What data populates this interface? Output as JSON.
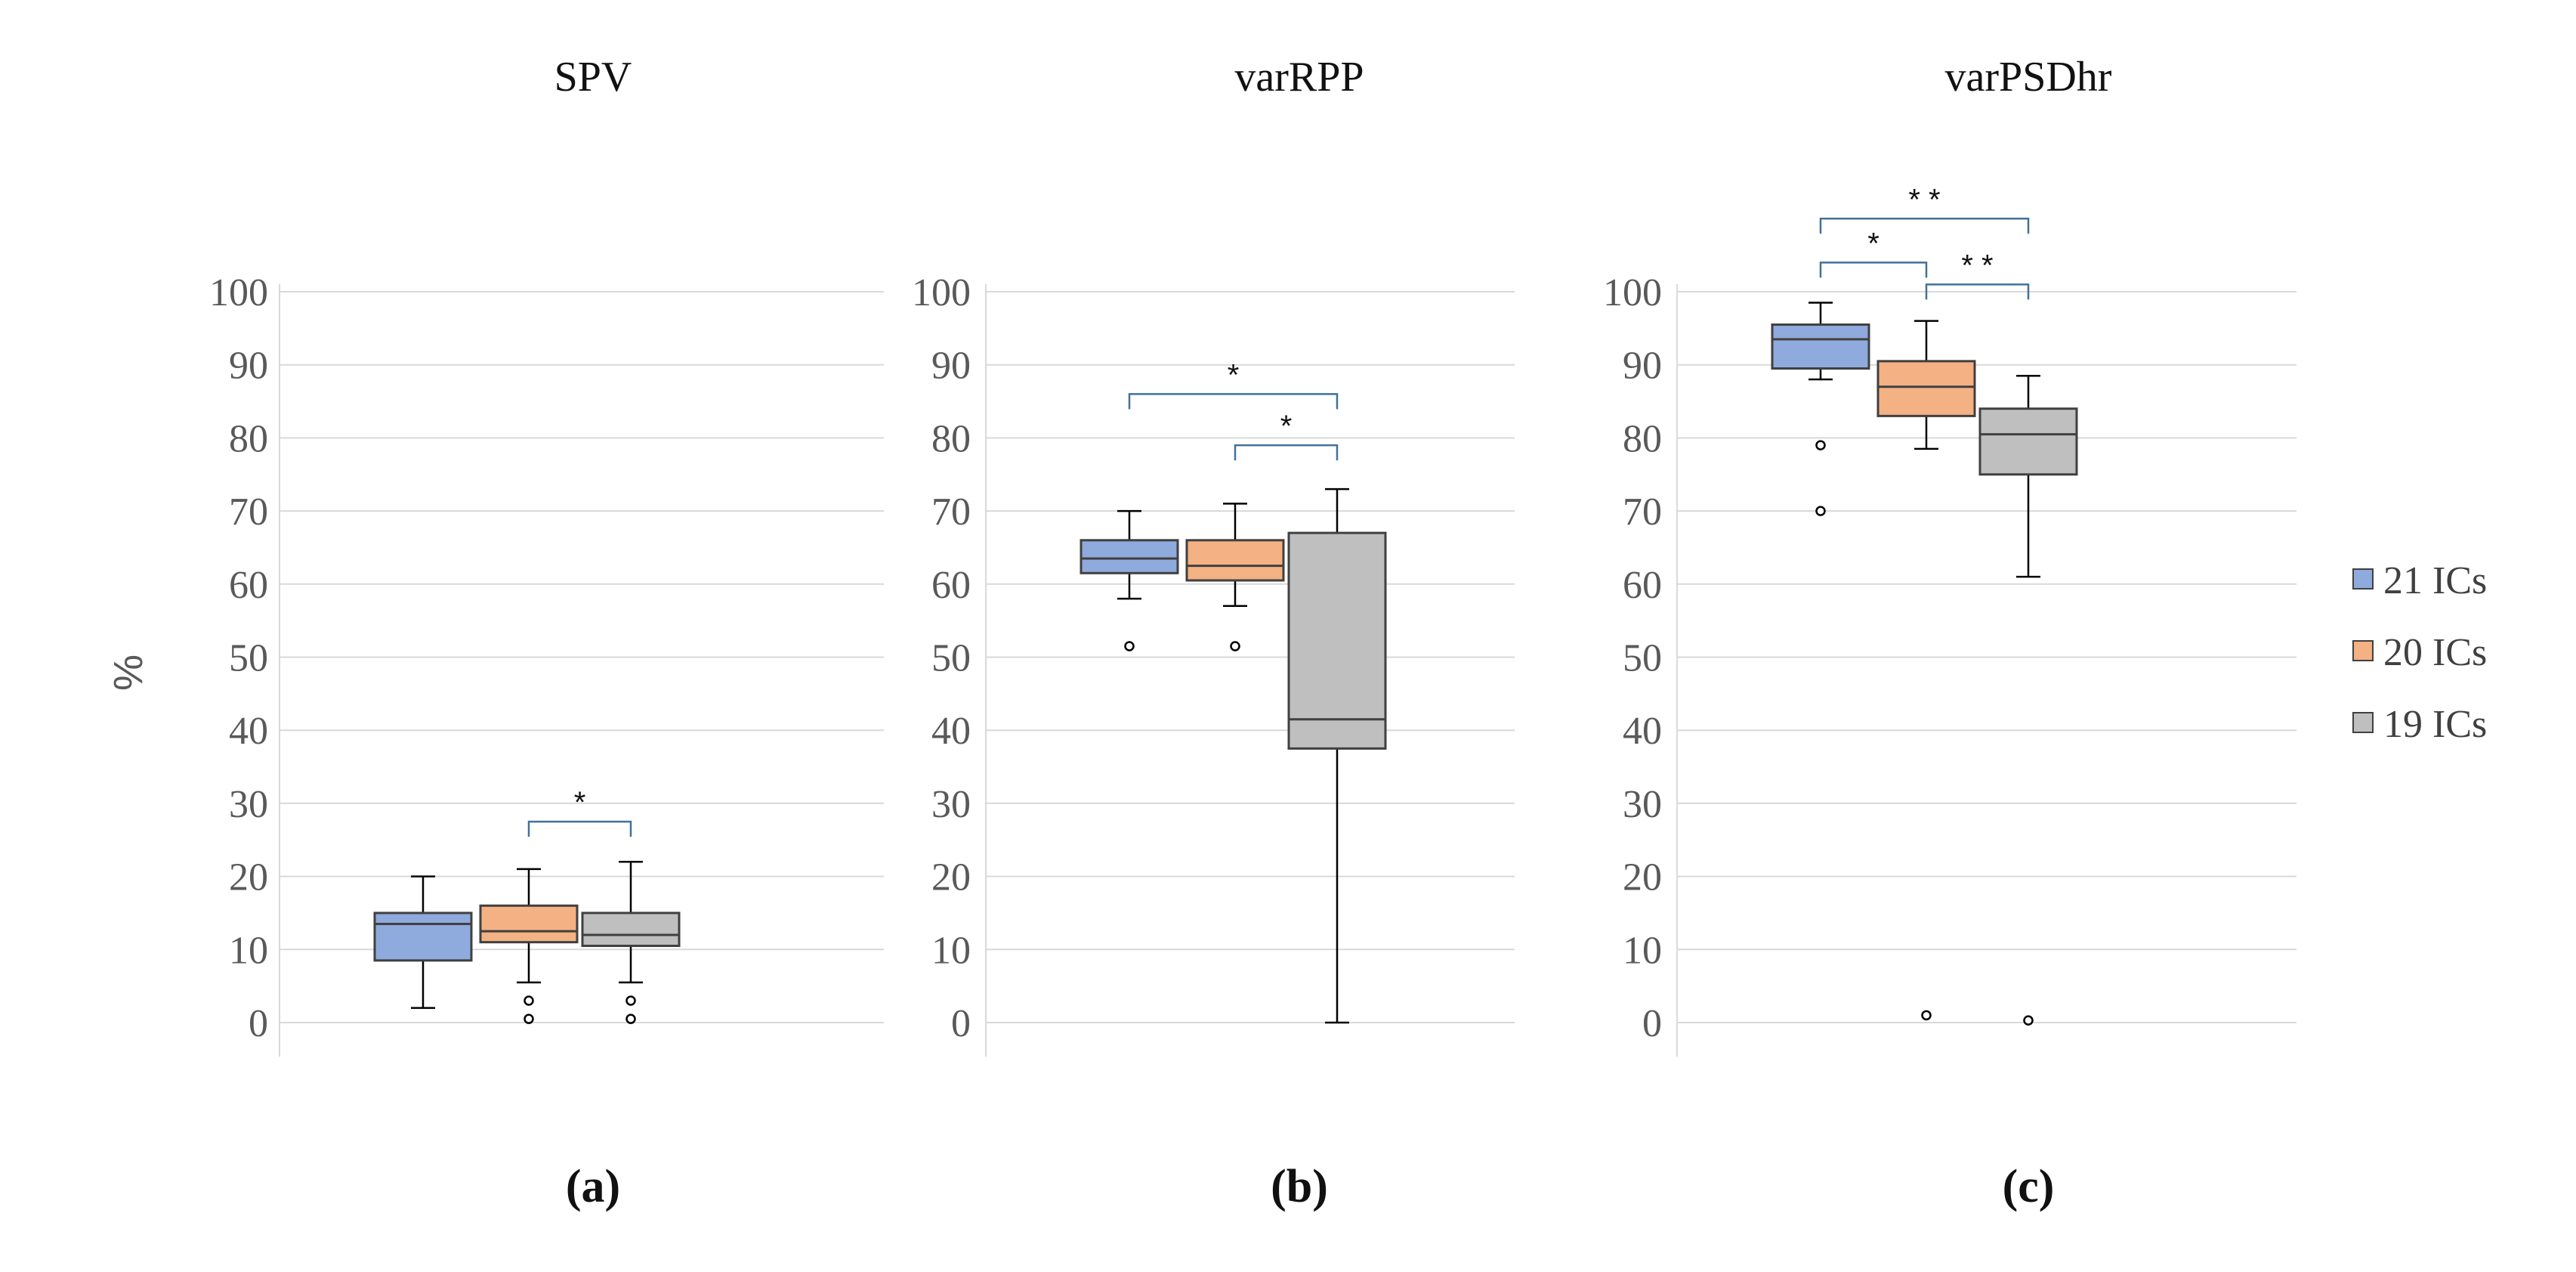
{
  "chart_data": [
    {
      "type": "box",
      "title": "SPV",
      "panel_label": "(a)",
      "ylabel": "%",
      "ylim": [
        0,
        100
      ],
      "yticks": [
        "0",
        "10",
        "20",
        "30",
        "40",
        "50",
        "60",
        "70",
        "80",
        "90",
        "100"
      ],
      "grid": true,
      "series": [
        {
          "name": "21 ICs",
          "min": 2,
          "q1": 8.5,
          "median": 13.5,
          "q3": 15,
          "max": 20,
          "outliers": []
        },
        {
          "name": "20 ICs",
          "min": 5.5,
          "q1": 11,
          "median": 12.5,
          "q3": 16,
          "max": 21,
          "outliers": [
            3,
            0.5
          ]
        },
        {
          "name": "19 ICs",
          "min": 5.5,
          "q1": 10.5,
          "median": 12,
          "q3": 15,
          "max": 22,
          "outliers": [
            3,
            0.5
          ]
        }
      ],
      "brackets": [
        {
          "from": 1,
          "to": 2,
          "label": "*",
          "y": 27.5
        }
      ]
    },
    {
      "type": "box",
      "title": "varRPP",
      "panel_label": "(b)",
      "ylim": [
        0,
        100
      ],
      "yticks": [
        "0",
        "10",
        "20",
        "30",
        "40",
        "50",
        "60",
        "70",
        "80",
        "90",
        "100"
      ],
      "grid": true,
      "series": [
        {
          "name": "21 ICs",
          "min": 58,
          "q1": 61.5,
          "median": 63.5,
          "q3": 66,
          "max": 70,
          "outliers": [
            51.5
          ]
        },
        {
          "name": "20 ICs",
          "min": 57,
          "q1": 60.5,
          "median": 62.5,
          "q3": 66,
          "max": 71,
          "outliers": [
            51.5
          ]
        },
        {
          "name": "19 ICs",
          "min": 0,
          "q1": 37.5,
          "median": 41.5,
          "q3": 67,
          "max": 73,
          "outliers": []
        }
      ],
      "brackets": [
        {
          "from": 0,
          "to": 2,
          "label": "*",
          "y": 86
        },
        {
          "from": 1,
          "to": 2,
          "label": "*",
          "y": 79
        }
      ]
    },
    {
      "type": "box",
      "title": "varPSDhr",
      "panel_label": "(c)",
      "ylim": [
        0,
        100
      ],
      "yticks": [
        "0",
        "10",
        "20",
        "30",
        "40",
        "50",
        "60",
        "70",
        "80",
        "90",
        "100"
      ],
      "grid": true,
      "series": [
        {
          "name": "21 ICs",
          "min": 88,
          "q1": 89.5,
          "median": 93.5,
          "q3": 95.5,
          "max": 98.5,
          "outliers": [
            79,
            70
          ]
        },
        {
          "name": "20 ICs",
          "min": 78.5,
          "q1": 83,
          "median": 87,
          "q3": 90.5,
          "max": 96,
          "outliers": [
            1
          ]
        },
        {
          "name": "19 ICs",
          "min": 61,
          "q1": 75,
          "median": 80.5,
          "q3": 84,
          "max": 88.5,
          "outliers": [
            0.3
          ]
        }
      ],
      "brackets": [
        {
          "from": 0,
          "to": 2,
          "label": "* *",
          "y": 110
        },
        {
          "from": 0,
          "to": 1,
          "label": "*",
          "y": 104
        },
        {
          "from": 1,
          "to": 2,
          "label": "* *",
          "y": 101
        }
      ]
    }
  ],
  "legend": {
    "position": "right",
    "items": [
      {
        "label": "21 ICs",
        "color": "#8faadc"
      },
      {
        "label": "20 ICs",
        "color": "#f4b183"
      },
      {
        "label": "19 ICs",
        "color": "#bfbfbf"
      }
    ]
  },
  "colors": {
    "fills": [
      "#8faadc",
      "#f4b183",
      "#bfbfbf"
    ],
    "bracket": "#41719c",
    "grid": "#d9d9d9",
    "axis": "#d9d9d9"
  }
}
